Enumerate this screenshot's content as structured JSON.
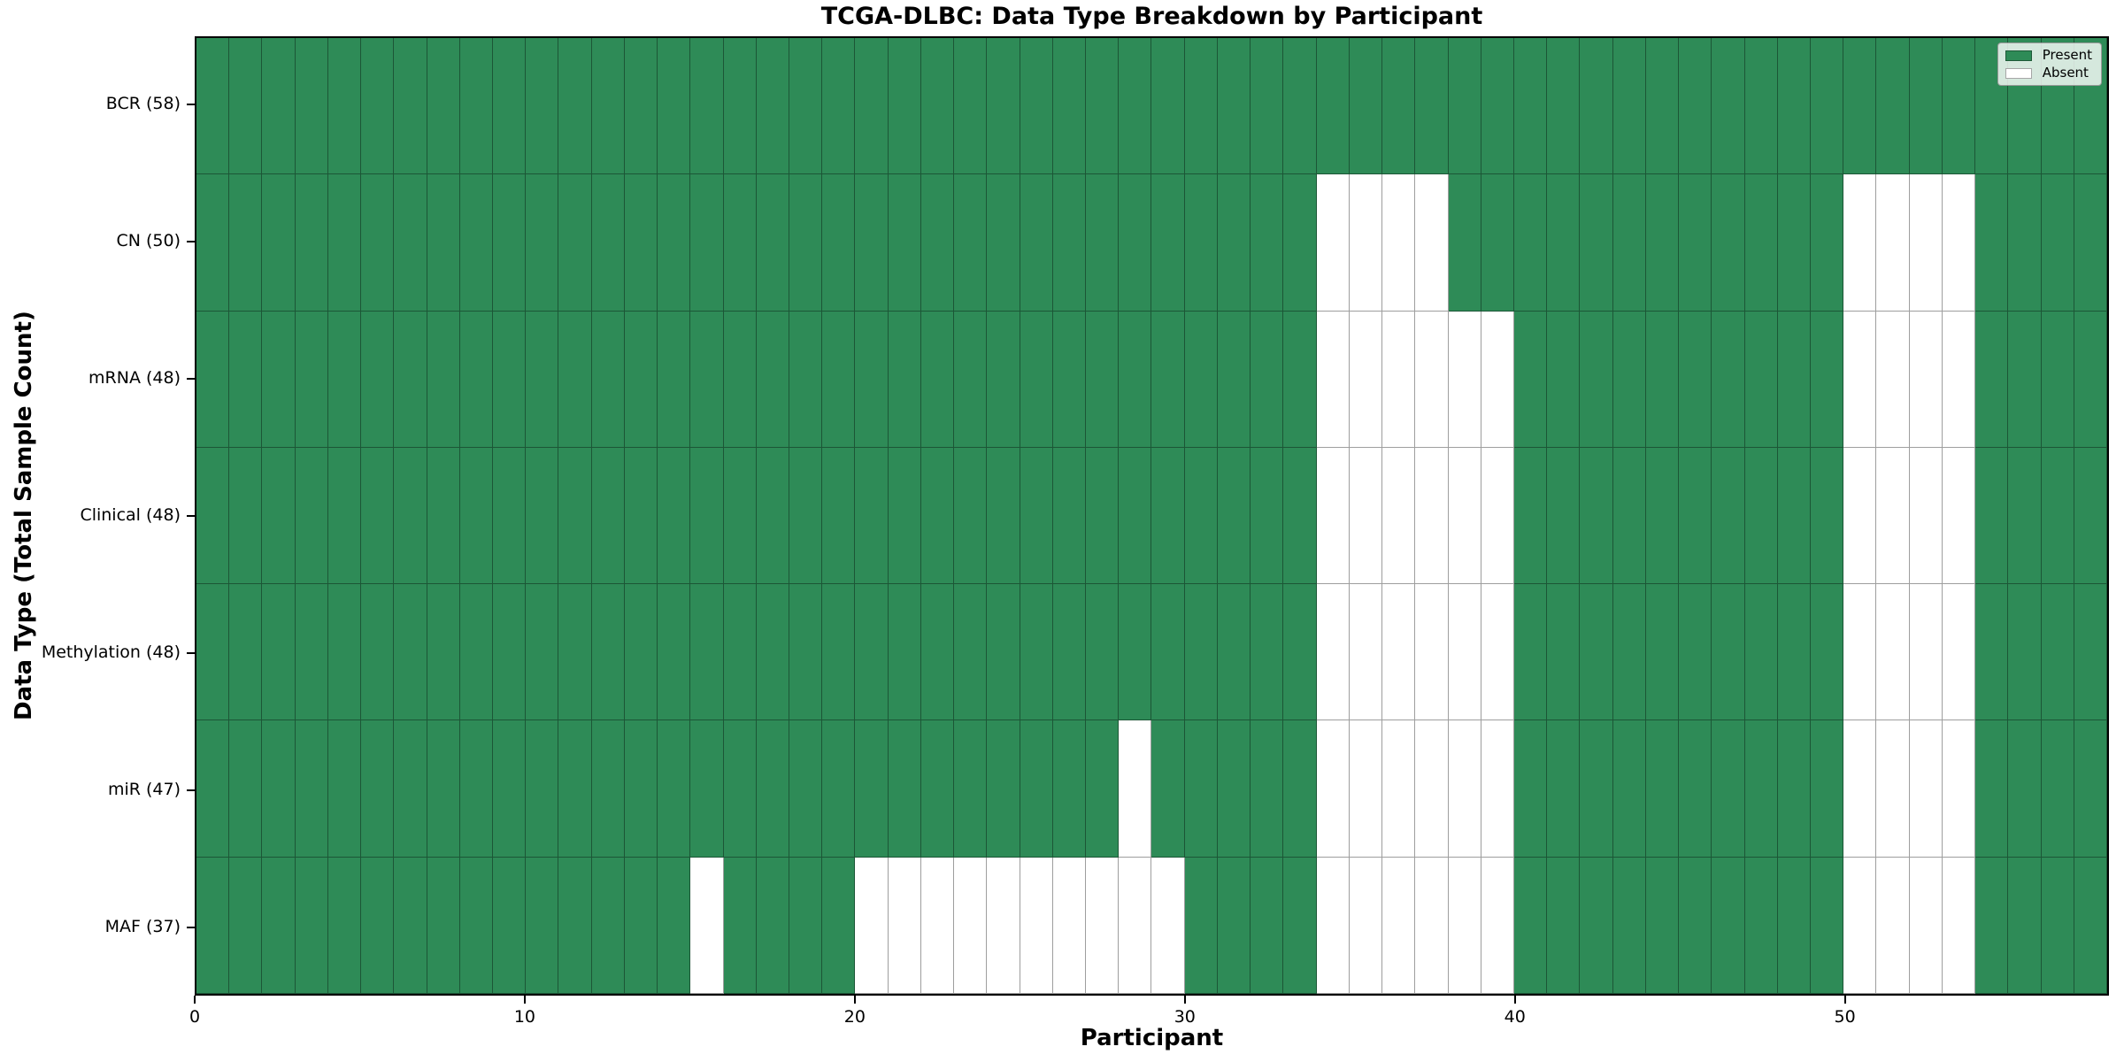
{
  "figure": {
    "background": "#ffffff"
  },
  "chart_data": {
    "type": "heatmap",
    "title": "TCGA-DLBC: Data Type Breakdown by Participant",
    "xlabel": "Participant",
    "ylabel": "Data Type (Total Sample Count)",
    "x_ticks": [
      0,
      10,
      20,
      30,
      40,
      50
    ],
    "x_range": [
      0,
      58
    ],
    "n_participants": 58,
    "grid": true,
    "legend_position": "upper right",
    "colors": {
      "present": "#2e8b57",
      "absent": "#ffffff",
      "cell_edge": "#000000",
      "cell_edge_alpha": 0.38,
      "spine": "#000000",
      "legend_face": "#ffffff",
      "legend_edge": "#9a9a9a"
    },
    "legend": [
      {
        "label": "Present",
        "color": "#2e8b57"
      },
      {
        "label": "Absent",
        "color": "#ffffff"
      }
    ],
    "rows": [
      {
        "label": "BCR (58)",
        "data_type": "BCR",
        "present_count": 58,
        "absent_participants": []
      },
      {
        "label": "CN (50)",
        "data_type": "CN",
        "present_count": 50,
        "absent_participants": [
          34,
          35,
          36,
          37,
          50,
          51,
          52,
          53
        ]
      },
      {
        "label": "mRNA (48)",
        "data_type": "mRNA",
        "present_count": 48,
        "absent_participants": [
          34,
          35,
          36,
          37,
          38,
          39,
          50,
          51,
          52,
          53
        ]
      },
      {
        "label": "Clinical (48)",
        "data_type": "Clinical",
        "present_count": 48,
        "absent_participants": [
          34,
          35,
          36,
          37,
          38,
          39,
          50,
          51,
          52,
          53
        ]
      },
      {
        "label": "Methylation (48)",
        "data_type": "Methylation",
        "present_count": 48,
        "absent_participants": [
          34,
          35,
          36,
          37,
          38,
          39,
          50,
          51,
          52,
          53
        ]
      },
      {
        "label": "miR (47)",
        "data_type": "miR",
        "present_count": 47,
        "absent_participants": [
          28,
          34,
          35,
          36,
          37,
          38,
          39,
          50,
          51,
          52,
          53
        ]
      },
      {
        "label": "MAF (37)",
        "data_type": "MAF",
        "present_count": 37,
        "absent_participants": [
          15,
          20,
          21,
          22,
          23,
          24,
          25,
          26,
          27,
          28,
          29,
          34,
          35,
          36,
          37,
          38,
          39,
          50,
          51,
          52,
          53
        ]
      }
    ]
  }
}
